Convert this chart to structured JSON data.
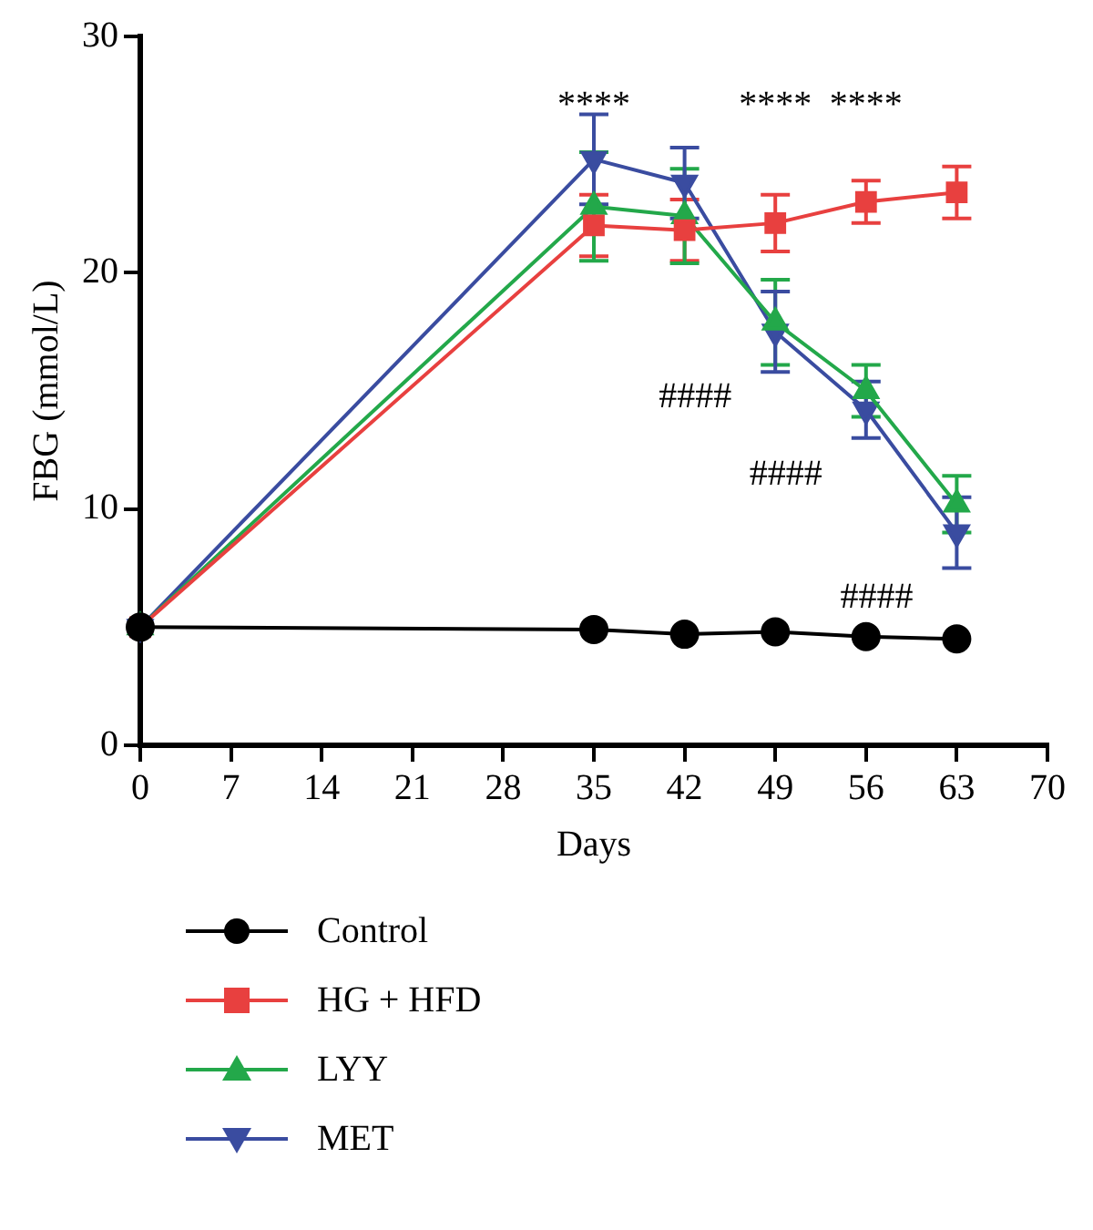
{
  "chart_data": {
    "type": "line",
    "xlabel": "Days",
    "ylabel": "FBG (mmol/L)",
    "xlim": [
      0,
      70
    ],
    "xticks": [
      0,
      7,
      14,
      21,
      28,
      35,
      42,
      49,
      56,
      63,
      70
    ],
    "ylim": [
      0,
      30
    ],
    "yticks": [
      0,
      10,
      20,
      30
    ],
    "grid": false,
    "legend": "bottom",
    "line_style": "solid",
    "x": [
      0,
      35,
      42,
      49,
      56,
      63
    ],
    "series": [
      {
        "name": "Control",
        "color": "#000000",
        "marker": "circle",
        "values": [
          5.0,
          4.9,
          4.7,
          4.8,
          4.6,
          4.5
        ],
        "errors": [
          null,
          null,
          null,
          null,
          null,
          null
        ]
      },
      {
        "name": "HG + HFD",
        "color": "#e8403f",
        "marker": "square",
        "values": [
          5.0,
          22.0,
          21.8,
          22.1,
          23.0,
          23.4
        ],
        "errors": [
          null,
          1.3,
          1.3,
          1.2,
          0.9,
          1.1
        ]
      },
      {
        "name": "LYY",
        "color": "#23a84a",
        "marker": "triangle",
        "values": [
          5.0,
          22.8,
          22.4,
          17.9,
          15.0,
          10.2
        ],
        "errors": [
          null,
          2.3,
          2.0,
          1.8,
          1.1,
          1.2
        ]
      },
      {
        "name": "MET",
        "color": "#3a4ca0",
        "marker": "triangle-down",
        "values": [
          5.0,
          24.8,
          23.8,
          17.5,
          14.2,
          9.0
        ],
        "errors": [
          null,
          1.9,
          1.5,
          1.7,
          1.2,
          1.5
        ]
      }
    ],
    "annotations": [
      {
        "text": "****",
        "x": 35,
        "y": 24.8
      },
      {
        "text": "****",
        "x": 49,
        "y": 22.1
      },
      {
        "text": "****",
        "x": 56,
        "y": 23.0
      },
      {
        "text": "####",
        "x": 49,
        "y": 17.5
      },
      {
        "text": "####",
        "x": 56,
        "y": 14.2
      },
      {
        "text": "####",
        "x": 63,
        "y": 9.0
      }
    ]
  }
}
